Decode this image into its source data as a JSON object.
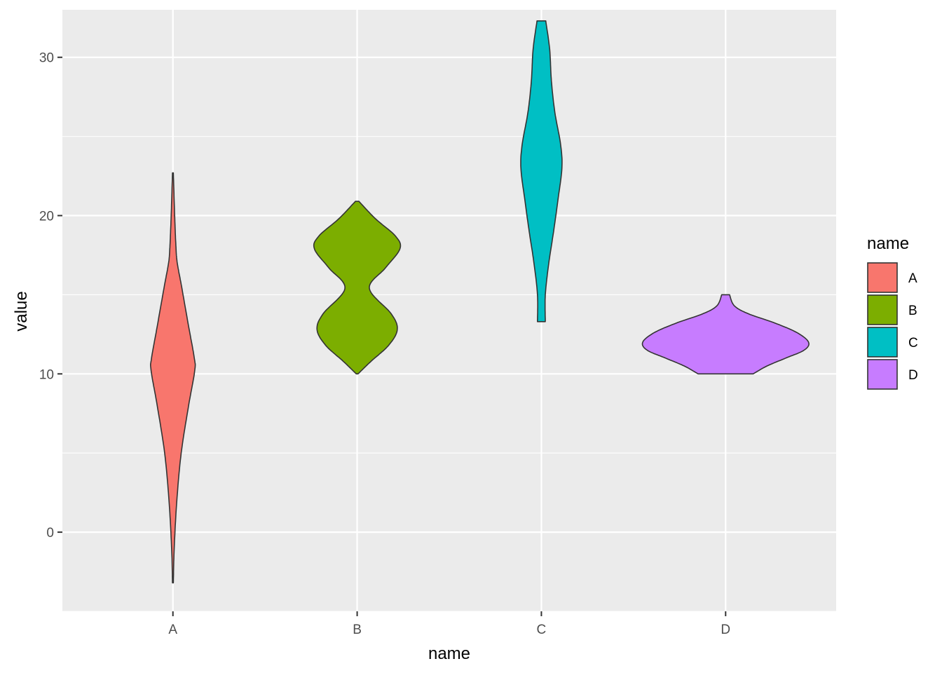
{
  "chart_data": {
    "type": "violin",
    "xlabel": "name",
    "ylabel": "value",
    "categories": [
      "A",
      "B",
      "C",
      "D"
    ],
    "ylim": [
      -5,
      33
    ],
    "yticks": [
      0,
      10,
      20,
      30
    ],
    "grid": true,
    "legend": {
      "title": "name",
      "placement": "right",
      "items": [
        {
          "label": "A",
          "color": "#F8766D"
        },
        {
          "label": "B",
          "color": "#7CAE00"
        },
        {
          "label": "C",
          "color": "#00BFC4"
        },
        {
          "label": "D",
          "color": "#C77CFF"
        }
      ]
    },
    "series": [
      {
        "category": "A",
        "color": "#F8766D",
        "profile": [
          [
            -3.2,
            0.01
          ],
          [
            -1.0,
            0.03
          ],
          [
            2.0,
            0.09
          ],
          [
            5.0,
            0.19
          ],
          [
            8.0,
            0.36
          ],
          [
            10.2,
            0.5
          ],
          [
            11.0,
            0.49
          ],
          [
            13.0,
            0.36
          ],
          [
            15.5,
            0.2
          ],
          [
            17.0,
            0.1
          ],
          [
            18.0,
            0.07
          ],
          [
            20.0,
            0.04
          ],
          [
            22.7,
            0.01
          ]
        ]
      },
      {
        "category": "B",
        "color": "#7CAE00",
        "profile": [
          [
            10.0,
            0.02
          ],
          [
            10.8,
            0.32
          ],
          [
            11.8,
            0.72
          ],
          [
            12.8,
            0.92
          ],
          [
            13.8,
            0.78
          ],
          [
            15.4,
            0.28
          ],
          [
            16.7,
            0.65
          ],
          [
            17.9,
            0.98
          ],
          [
            18.7,
            0.88
          ],
          [
            19.8,
            0.42
          ],
          [
            20.9,
            0.04
          ]
        ]
      },
      {
        "category": "C",
        "color": "#00BFC4",
        "profile": [
          [
            13.3,
            0.09
          ],
          [
            15.0,
            0.09
          ],
          [
            17.0,
            0.17
          ],
          [
            19.0,
            0.28
          ],
          [
            21.0,
            0.38
          ],
          [
            23.0,
            0.47
          ],
          [
            24.5,
            0.44
          ],
          [
            26.5,
            0.31
          ],
          [
            28.5,
            0.23
          ],
          [
            30.5,
            0.19
          ],
          [
            32.3,
            0.1
          ]
        ]
      },
      {
        "category": "D",
        "color": "#C77CFF",
        "profile": [
          [
            10.0,
            0.63
          ],
          [
            10.5,
            0.95
          ],
          [
            11.0,
            1.38
          ],
          [
            11.5,
            1.8
          ],
          [
            12.0,
            1.9
          ],
          [
            12.6,
            1.64
          ],
          [
            13.2,
            1.14
          ],
          [
            13.8,
            0.52
          ],
          [
            14.3,
            0.2
          ],
          [
            15.0,
            0.09
          ]
        ]
      }
    ]
  }
}
